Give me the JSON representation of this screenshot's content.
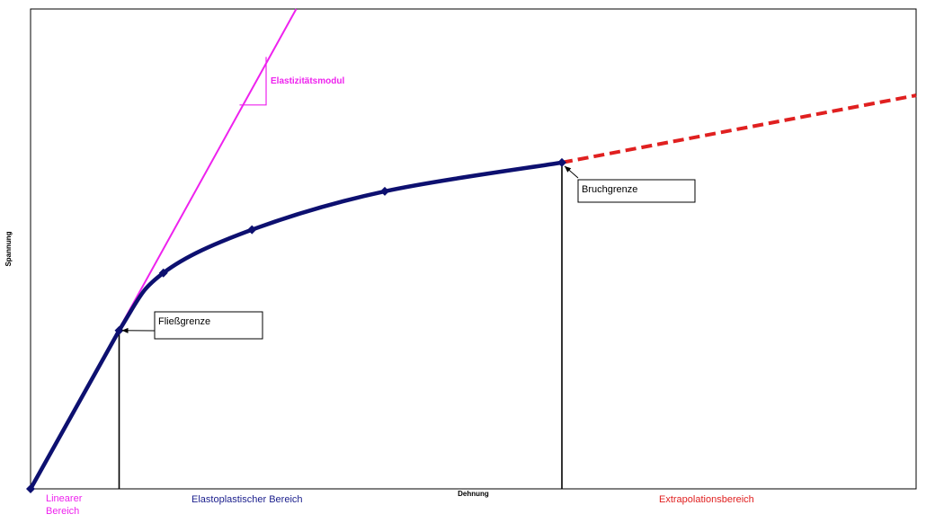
{
  "colors": {
    "curve": "#0d1070",
    "elastic": "#ee22ee",
    "extrapolation": "#e02020",
    "linear_label": "#ee22ee",
    "elastoplastic_label": "#1a1e8c",
    "extrapolation_label": "#e02020",
    "frame": "#000000"
  },
  "chart_data": {
    "type": "line",
    "title": "",
    "xlabel": "Dehnung",
    "ylabel": "Spannung",
    "xlim": [
      0,
      1
    ],
    "ylim": [
      0,
      1
    ],
    "grid": false,
    "legend": "none",
    "series": [
      {
        "style": "solid-thick",
        "color": "#0d1070",
        "marker": "diamond",
        "points": [
          {
            "x": 0.0,
            "y": 0.0
          },
          {
            "x": 0.1,
            "y": 0.33
          },
          {
            "x": 0.15,
            "y": 0.45
          },
          {
            "x": 0.25,
            "y": 0.54
          },
          {
            "x": 0.4,
            "y": 0.62
          },
          {
            "x": 0.6,
            "y": 0.68
          }
        ]
      },
      {
        "style": "solid-thin",
        "color": "#ee22ee",
        "marker": "none",
        "points": [
          {
            "x": 0.0,
            "y": 0.0
          },
          {
            "x": 0.3,
            "y": 1.0
          }
        ]
      },
      {
        "style": "dashed",
        "color": "#e02020",
        "marker": "none",
        "points": [
          {
            "x": 0.6,
            "y": 0.68
          },
          {
            "x": 1.0,
            "y": 0.82
          }
        ]
      }
    ],
    "annotations": {
      "yield": {
        "label": "Fließgrenze",
        "x": 0.1,
        "y": 0.33
      },
      "fracture": {
        "label": "Bruchgrenze",
        "x": 0.6,
        "y": 0.68
      },
      "modulus": {
        "label": "Elastizitätsmodul"
      }
    },
    "regions": [
      {
        "label_lines": [
          "Linearer",
          "Bereich"
        ],
        "color": "#ee22ee"
      },
      {
        "label_lines": [
          "Elastoplastischer Bereich"
        ],
        "color": "#1a1e8c"
      },
      {
        "label_lines": [
          "Extrapolationsbereich"
        ],
        "color": "#e02020"
      }
    ]
  }
}
